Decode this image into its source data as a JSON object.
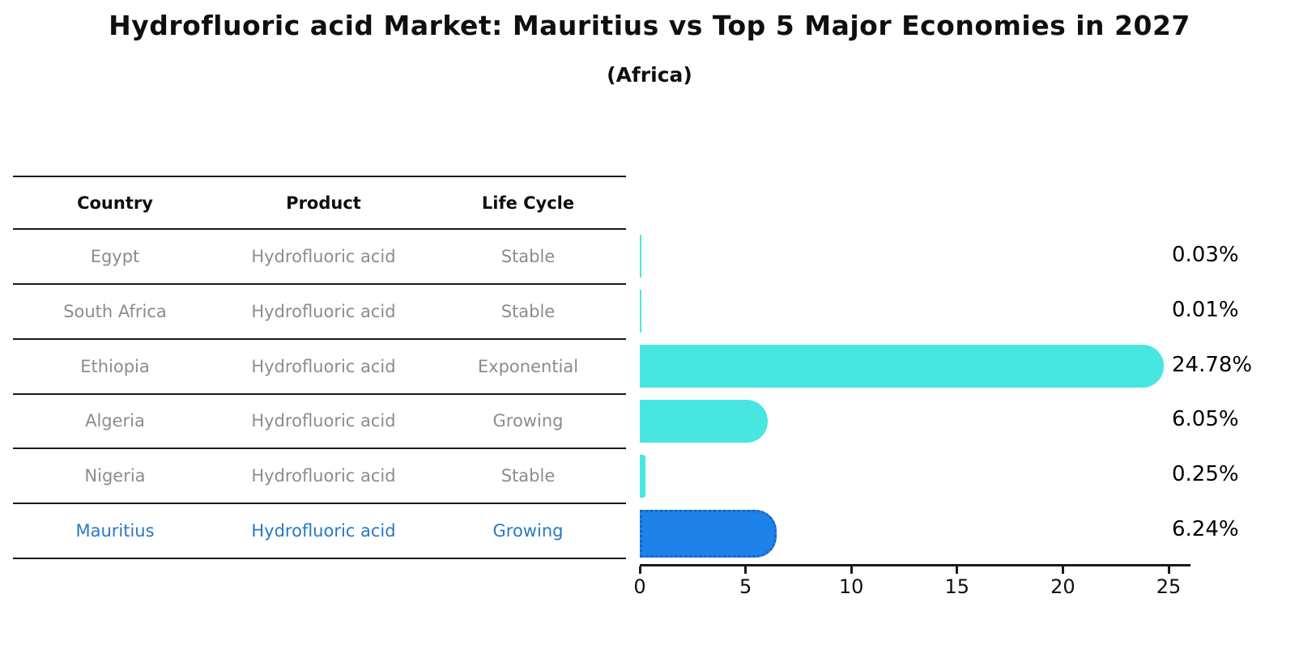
{
  "title": "Hydrofluoric acid Market: Mauritius vs Top 5 Major Economies in 2027",
  "subtitle": "(Africa)",
  "table": {
    "headers": [
      "Country",
      "Product",
      "Life Cycle"
    ],
    "rows": [
      {
        "country": "Egypt",
        "product": "Hydrofluoric acid",
        "life_cycle": "Stable",
        "highlight": false
      },
      {
        "country": "South Africa",
        "product": "Hydrofluoric acid",
        "life_cycle": "Stable",
        "highlight": false
      },
      {
        "country": "Ethiopia",
        "product": "Hydrofluoric acid",
        "life_cycle": "Exponential",
        "highlight": false
      },
      {
        "country": "Algeria",
        "product": "Hydrofluoric acid",
        "life_cycle": "Growing",
        "highlight": false
      },
      {
        "country": "Nigeria",
        "product": "Hydrofluoric acid",
        "life_cycle": "Stable",
        "highlight": false
      },
      {
        "country": "Mauritius",
        "product": "Hydrofluoric acid",
        "life_cycle": "Growing",
        "highlight": true
      }
    ]
  },
  "chart_data": {
    "type": "bar",
    "orientation": "horizontal",
    "title": "Hydrofluoric acid Market: Mauritius vs Top 5 Major Economies in 2027",
    "subtitle": "(Africa)",
    "categories": [
      "Egypt",
      "South Africa",
      "Ethiopia",
      "Algeria",
      "Nigeria",
      "Mauritius"
    ],
    "values": [
      0.03,
      0.01,
      24.78,
      6.05,
      0.25,
      6.24
    ],
    "value_labels": [
      "0.03%",
      "0.01%",
      "24.78%",
      "6.05%",
      "0.25%",
      "6.24%"
    ],
    "highlight_index": 5,
    "xlabel": "",
    "ylabel": "",
    "xlim": [
      0,
      26
    ],
    "x_ticks": [
      0,
      5,
      10,
      15,
      20,
      25
    ],
    "grid": false,
    "legend": false
  },
  "colors": {
    "bar": "#48e6e0",
    "highlight_fill": "#1e82e8",
    "highlight_border": "#1565c8",
    "highlight_text": "#2878c8",
    "row_text": "#8c8c8c",
    "header_text": "#0f0f0f",
    "line": "#1a1a1a"
  }
}
